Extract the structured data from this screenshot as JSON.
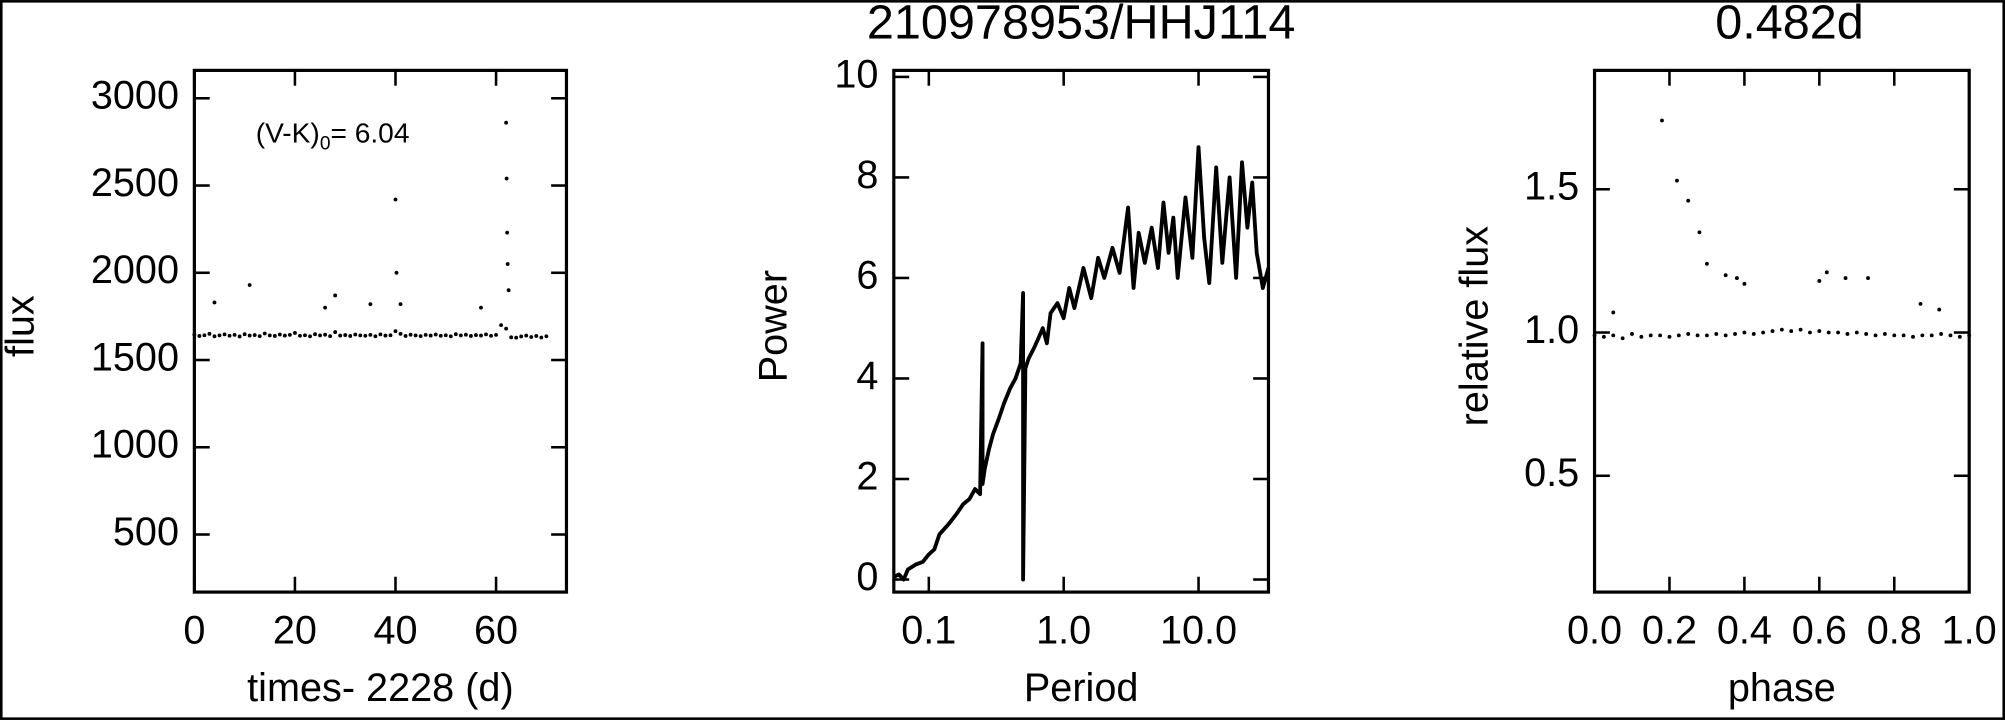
{
  "chart_data": [
    {
      "type": "scatter",
      "x_label": "times- 2228 (d)",
      "y_label": "flux",
      "annotation": "(V-K)",
      "annotation_subscript": "0",
      "annotation_value": "= 6.04",
      "color": "#000000",
      "xlim": [
        0,
        74
      ],
      "ylim": [
        170,
        3160
      ],
      "xticks": [
        0,
        20,
        40,
        60
      ],
      "yticks": [
        500,
        1000,
        1500,
        2000,
        2500,
        3000
      ],
      "x": [
        0,
        1,
        2,
        3,
        4,
        5,
        6,
        7,
        8,
        9,
        10,
        11,
        12,
        13,
        14,
        15,
        16,
        17,
        18,
        19,
        20,
        21,
        22,
        23,
        24,
        25,
        26,
        27,
        28,
        29,
        30,
        31,
        32,
        33,
        34,
        35,
        36,
        37,
        38,
        39,
        40,
        41,
        42,
        43,
        44,
        45,
        46,
        47,
        48,
        49,
        50,
        51,
        52,
        53,
        54,
        55,
        56,
        57,
        58,
        59,
        60,
        61,
        62,
        63,
        64,
        65,
        66,
        67,
        68,
        69,
        70,
        4,
        11,
        26,
        28,
        40,
        40.2,
        41,
        62,
        62.1,
        62.2,
        62.3,
        62.5,
        35,
        57
      ],
      "values": [
        1645,
        1638,
        1642,
        1650,
        1636,
        1641,
        1647,
        1639,
        1644,
        1635,
        1648,
        1640,
        1643,
        1637,
        1652,
        1641,
        1638,
        1646,
        1640,
        1644,
        1655,
        1639,
        1642,
        1636,
        1648,
        1641,
        1645,
        1637,
        1660,
        1640,
        1643,
        1638,
        1646,
        1641,
        1639,
        1644,
        1636,
        1647,
        1640,
        1642,
        1665,
        1650,
        1638,
        1645,
        1641,
        1637,
        1644,
        1640,
        1646,
        1639,
        1642,
        1636,
        1648,
        1641,
        1645,
        1638,
        1643,
        1640,
        1647,
        1639,
        1644,
        1700,
        1680,
        1630,
        1628,
        1635,
        1640,
        1632,
        1638,
        1629,
        1636,
        1830,
        1930,
        1800,
        1870,
        2420,
        2000,
        1820,
        2860,
        2540,
        2230,
        2050,
        1900,
        1820,
        1800
      ]
    },
    {
      "type": "line",
      "title": "210978953/HHJ114",
      "x_label": "Period",
      "y_label": "Power",
      "color": "#000000",
      "xlog": true,
      "xlim": [
        0.055,
        33
      ],
      "ylim": [
        -0.25,
        10.13
      ],
      "xticks": [
        0.1,
        {
          "value": 1,
          "label": "1.0"
        },
        {
          "value": 10,
          "label": "10.0"
        }
      ],
      "yticks": [
        0,
        2,
        4,
        6,
        8,
        10
      ],
      "x": [
        0.055,
        0.06,
        0.065,
        0.07,
        0.08,
        0.09,
        0.1,
        0.11,
        0.12,
        0.14,
        0.16,
        0.18,
        0.2,
        0.22,
        0.24,
        0.25,
        0.25,
        0.26,
        0.28,
        0.3,
        0.33,
        0.36,
        0.4,
        0.44,
        0.48,
        0.5,
        0.5,
        0.52,
        0.55,
        0.6,
        0.65,
        0.7,
        0.75,
        0.8,
        0.9,
        1.0,
        1.1,
        1.2,
        1.4,
        1.6,
        1.8,
        2.0,
        2.3,
        2.6,
        3.0,
        3.3,
        3.6,
        4.0,
        4.5,
        5.0,
        5.5,
        6.0,
        6.5,
        7.0,
        8.0,
        9.0,
        10.0,
        11.0,
        12.0,
        13.5,
        15.0,
        17.0,
        19.0,
        21.0,
        23.0,
        25.0,
        27.0,
        30.0,
        33.0
      ],
      "values": [
        0.05,
        0.1,
        0.0,
        0.2,
        0.3,
        0.35,
        0.5,
        0.6,
        0.9,
        1.1,
        1.3,
        1.5,
        1.6,
        1.8,
        1.7,
        4.7,
        1.9,
        2.2,
        2.6,
        2.9,
        3.2,
        3.5,
        3.8,
        4.0,
        4.3,
        5.7,
        0.0,
        4.2,
        4.4,
        4.6,
        4.8,
        5.0,
        4.7,
        5.3,
        5.5,
        5.2,
        5.8,
        5.4,
        6.2,
        5.6,
        6.4,
        6.0,
        6.6,
        6.1,
        7.4,
        5.8,
        6.9,
        6.3,
        7.0,
        6.2,
        7.5,
        6.5,
        7.2,
        6.0,
        7.6,
        6.4,
        8.6,
        6.8,
        5.9,
        8.2,
        6.3,
        8.0,
        6.0,
        8.3,
        7.0,
        7.9,
        6.5,
        5.8,
        6.2
      ]
    },
    {
      "type": "scatter",
      "title": "0.482d",
      "x_label": "phase",
      "y_label": "relative flux",
      "color": "#000000",
      "xlim": [
        0,
        1
      ],
      "ylim": [
        0.094,
        1.915
      ],
      "xticks": [
        {
          "value": 0,
          "label": "0.0"
        },
        0.2,
        0.4,
        0.6,
        0.8,
        {
          "value": 1,
          "label": "1.0"
        }
      ],
      "yticks": [
        0.5,
        {
          "value": 1,
          "label": "1.0"
        },
        1.5
      ],
      "x": [
        0,
        0.025,
        0.05,
        0.075,
        0.1,
        0.125,
        0.15,
        0.175,
        0.2,
        0.225,
        0.25,
        0.275,
        0.3,
        0.325,
        0.35,
        0.375,
        0.4,
        0.425,
        0.45,
        0.475,
        0.5,
        0.525,
        0.55,
        0.575,
        0.6,
        0.625,
        0.65,
        0.675,
        0.7,
        0.725,
        0.75,
        0.775,
        0.8,
        0.825,
        0.85,
        0.875,
        0.9,
        0.925,
        0.95,
        0.975,
        1,
        0.18,
        0.22,
        0.25,
        0.28,
        0.3,
        0.35,
        0.38,
        0.4,
        0.62,
        0.67,
        0.73,
        0.6,
        0.87,
        0.05,
        0.92
      ],
      "values": [
        0.99,
        0.985,
        0.99,
        0.98,
        0.995,
        0.985,
        0.99,
        0.99,
        0.985,
        0.99,
        0.995,
        0.99,
        0.99,
        0.995,
        0.99,
        0.995,
        1.0,
        0.995,
        1.0,
        1.005,
        1.01,
        1.005,
        1.01,
        1.0,
        1.005,
        1.0,
        1.0,
        0.995,
        1.0,
        0.995,
        0.99,
        0.995,
        0.99,
        0.99,
        0.985,
        0.99,
        0.99,
        0.995,
        0.99,
        0.985,
        0.99,
        1.74,
        1.53,
        1.46,
        1.35,
        1.24,
        1.2,
        1.19,
        1.17,
        1.21,
        1.19,
        1.19,
        1.18,
        1.1,
        1.07,
        1.08
      ]
    }
  ]
}
